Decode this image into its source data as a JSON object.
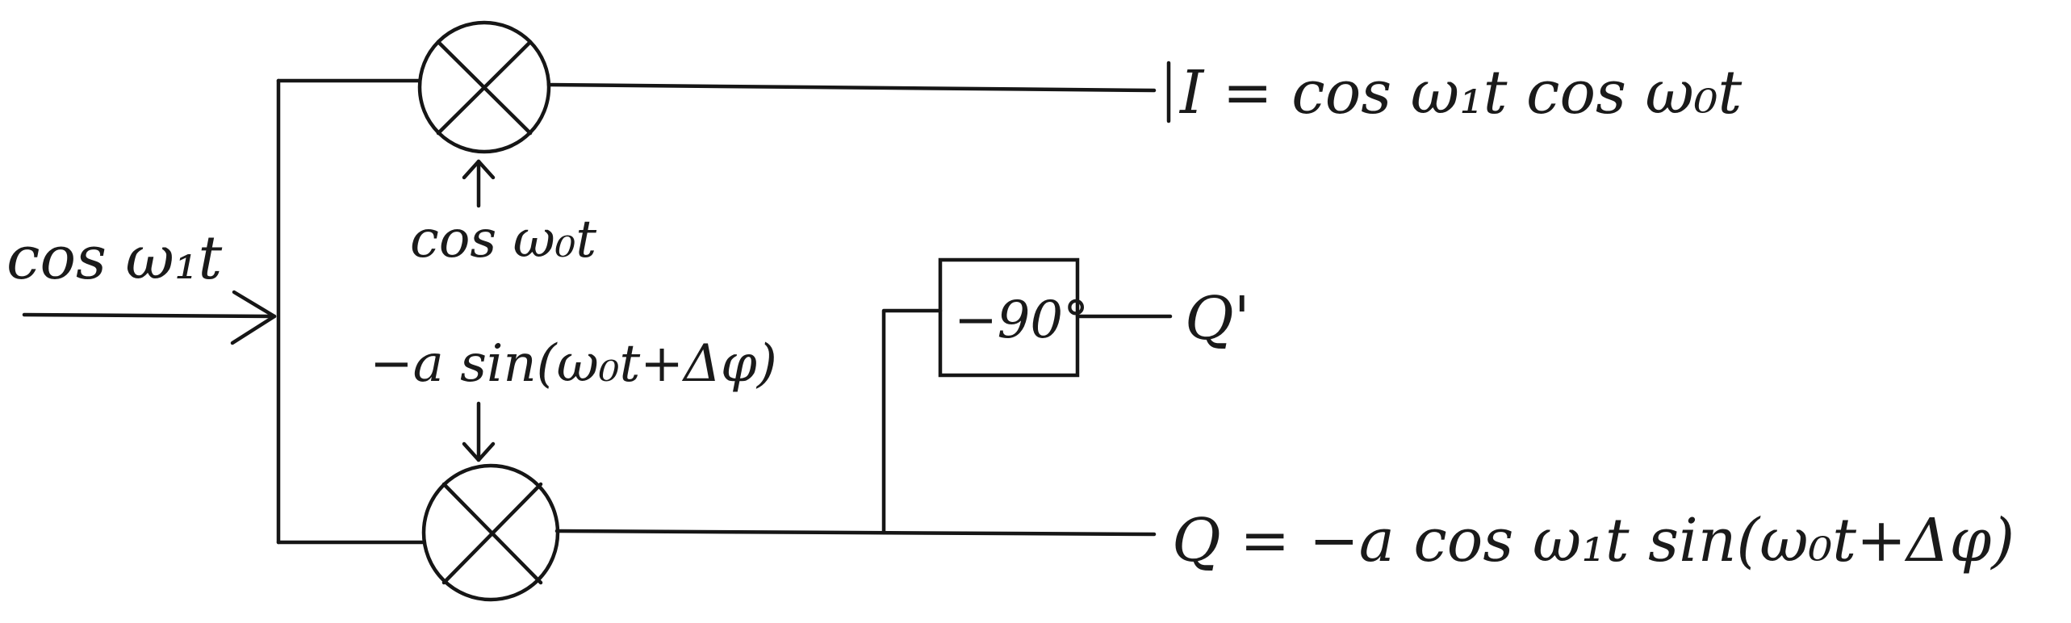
{
  "input": {
    "label": "cos ω₁t"
  },
  "lo_top": {
    "label": "cos ω₀t"
  },
  "lo_bottom": {
    "label": "−a sin(ω₀t+Δφ)"
  },
  "phase_shifter": {
    "label": "−90°"
  },
  "outputs": {
    "i": {
      "label": "I = cos ω₁t cos ω₀t"
    },
    "q_prime": {
      "label": "Q'"
    },
    "q": {
      "label": "Q = −a cos ω₁t sin(ω₀t+Δφ)"
    }
  }
}
